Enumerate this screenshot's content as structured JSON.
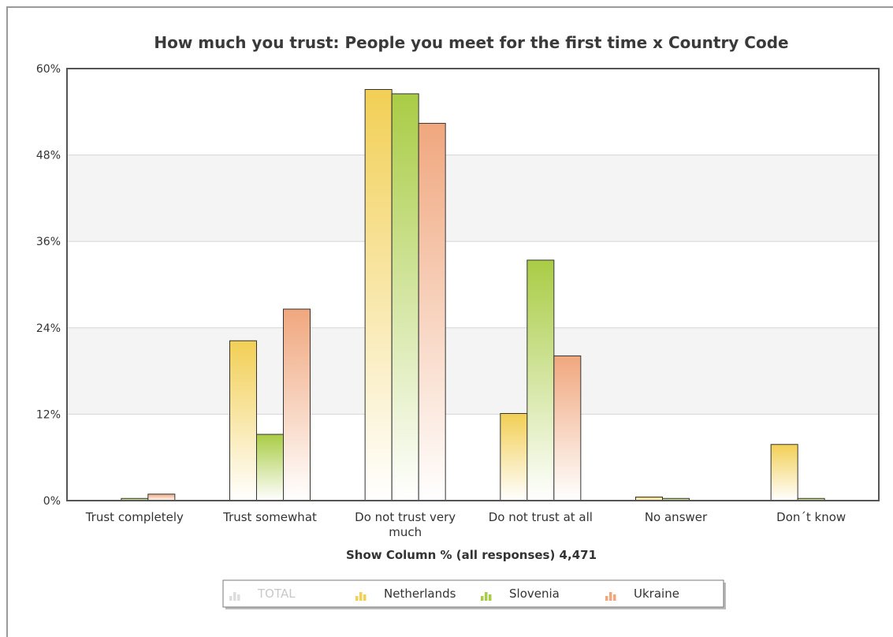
{
  "chart_data": {
    "type": "bar",
    "title": "How much you trust: People you meet for the first time  x  Country Code",
    "xlabel": "Show Column % (all responses) 4,471",
    "ylabel": "",
    "ylim": [
      0,
      60
    ],
    "yticks": [
      "0%",
      "12%",
      "24%",
      "36%",
      "48%",
      "60%"
    ],
    "ytick_values": [
      0,
      12,
      24,
      36,
      48,
      60
    ],
    "categories": [
      [
        "Trust completely"
      ],
      [
        "Trust somewhat"
      ],
      [
        "Do not trust very",
        "much"
      ],
      [
        "Do not trust at all"
      ],
      [
        "No answer"
      ],
      [
        "Don´t know"
      ]
    ],
    "series": [
      {
        "name": "Netherlands",
        "color": "#f2cf55",
        "values": [
          0.0,
          22.2,
          57.1,
          12.1,
          0.5,
          7.8
        ]
      },
      {
        "name": "Slovenia",
        "color": "#a9cc45",
        "values": [
          0.3,
          9.2,
          56.5,
          33.4,
          0.3,
          0.3
        ]
      },
      {
        "name": "Ukraine",
        "color": "#f0a77e",
        "values": [
          0.9,
          26.6,
          52.4,
          20.1,
          0.0,
          0.0
        ]
      }
    ],
    "legend": {
      "placement": "bottom",
      "items": [
        {
          "name": "TOTAL",
          "color": "#d9d9d9",
          "muted": true
        },
        {
          "name": "Netherlands",
          "color": "#f2cf55",
          "muted": false
        },
        {
          "name": "Slovenia",
          "color": "#a9cc45",
          "muted": false
        },
        {
          "name": "Ukraine",
          "color": "#f0a77e",
          "muted": false
        }
      ]
    },
    "grid": true
  }
}
